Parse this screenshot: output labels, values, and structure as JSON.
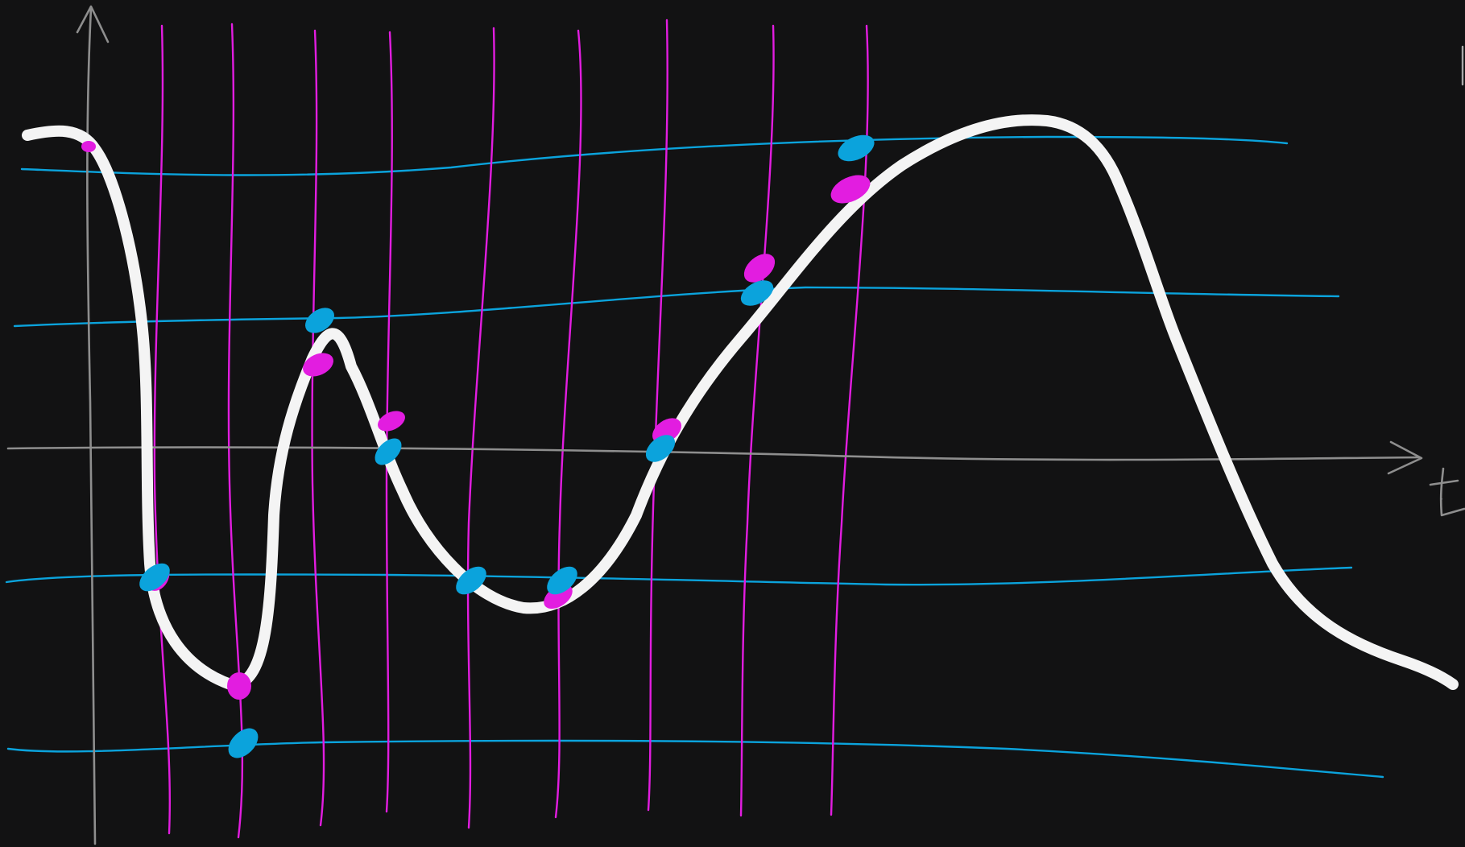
{
  "axis_label_t": "t",
  "colors": {
    "background": "#121213",
    "axes": "#8e8e8e",
    "signal": "#f4f4f4",
    "horizontal_lines": "#0ba3dc",
    "vertical_lines": "#e21de0",
    "horizontal_samples": "#0ba3dc",
    "vertical_samples": "#e21de0"
  },
  "elements": {
    "horizontal_line_count": 5,
    "vertical_line_count": 10,
    "magenta_sample_count": 10,
    "blue_sample_count": 10
  }
}
